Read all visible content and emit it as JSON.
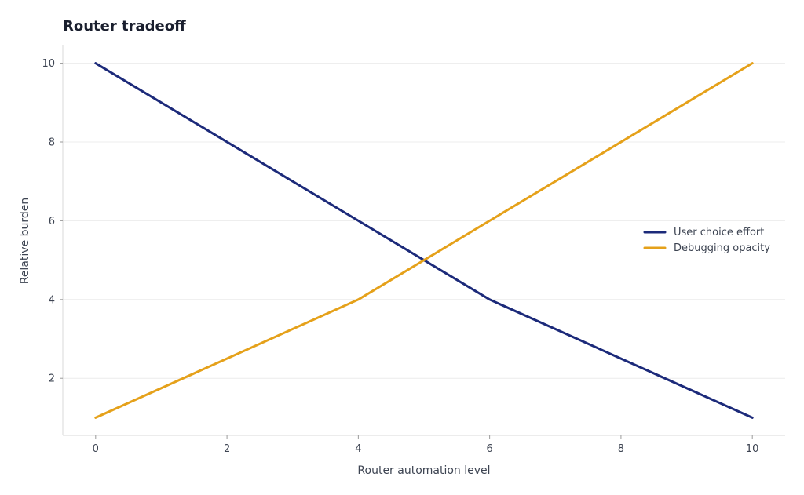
{
  "chart_data": {
    "type": "line",
    "title": "Router tradeoff",
    "xlabel": "Router automation level",
    "ylabel": "Relative burden",
    "xlim": [
      -0.5,
      10.5
    ],
    "ylim": [
      0.55,
      10.45
    ],
    "x_ticks": [
      0,
      2,
      4,
      6,
      8,
      10
    ],
    "y_ticks": [
      2,
      4,
      6,
      8,
      10
    ],
    "grid": "horizontal",
    "legend_position": "center-right",
    "series": [
      {
        "name": "User choice effort",
        "color": "#1c2a7a",
        "x": [
          0,
          4,
          6,
          10
        ],
        "y": [
          10,
          6,
          4,
          1
        ]
      },
      {
        "name": "Debugging opacity",
        "color": "#e5a11a",
        "x": [
          0,
          4,
          6,
          10
        ],
        "y": [
          1,
          4,
          6,
          10
        ]
      }
    ]
  }
}
